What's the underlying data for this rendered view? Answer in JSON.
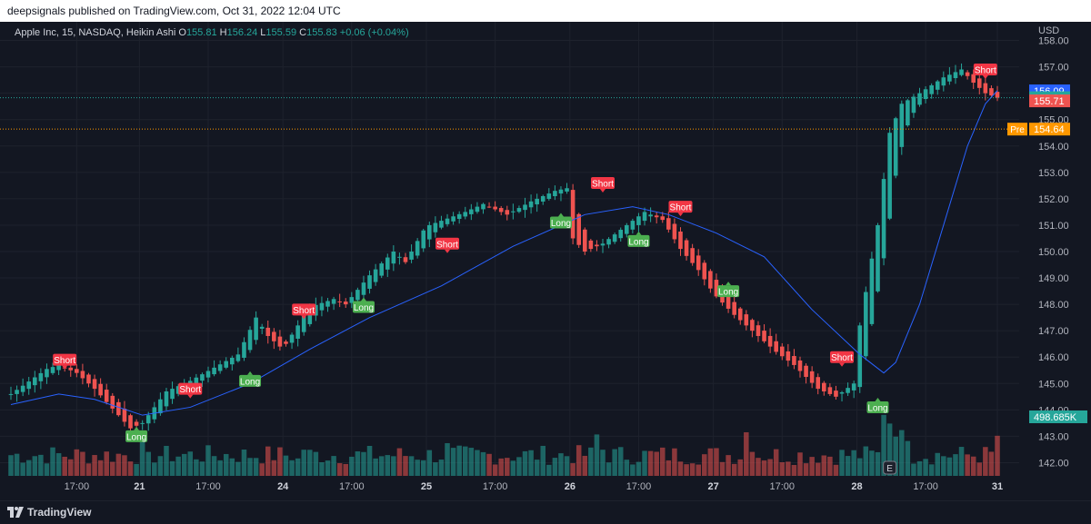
{
  "header": {
    "publisher_line": "deepsignals published on TradingView.com, Oct 31, 2022 12:04 UTC"
  },
  "legend": {
    "symbol": "Apple Inc, 15, NASDAQ, Heikin Ashi",
    "o_label": "O",
    "o_value": "155.81",
    "h_label": "H",
    "h_value": "156.24",
    "l_label": "L",
    "l_value": "155.59",
    "c_label": "C",
    "c_value": "155.83",
    "change": "+0.06 (+0.04%)"
  },
  "footer": {
    "brand": "TradingView"
  },
  "colors": {
    "up": "#26a69a",
    "down": "#ef5350",
    "ma": "#2962ff",
    "bg": "#131722",
    "grid": "#1e222d",
    "text": "#b2b5be",
    "pre": "#ff9800",
    "long": "#4caf50",
    "short": "#f23645"
  },
  "chart_data": {
    "type": "candlestick",
    "style": "Heikin Ashi",
    "timeframe": "15",
    "exchange": "NASDAQ",
    "currency_label": "USD",
    "ylim": [
      141.5,
      158.5
    ],
    "y_ticks": [
      142,
      143,
      144,
      145,
      146,
      147,
      148,
      149,
      150,
      151,
      152,
      153,
      154,
      155,
      156,
      157,
      158
    ],
    "x_ticks": [
      "17:00",
      "21",
      "17:00",
      "24",
      "17:00",
      "25",
      "17:00",
      "26",
      "17:00",
      "27",
      "17:00",
      "28",
      "17:00",
      "31"
    ],
    "bold_x_ticks": [
      "21",
      "24",
      "25",
      "26",
      "27",
      "28",
      "31"
    ],
    "bars_total": 166,
    "sessions": [
      {
        "bars": 22,
        "points": [
          [
            0,
            144.6
          ],
          [
            6,
            145.55
          ],
          [
            8,
            145.7
          ],
          [
            11,
            145.4
          ],
          [
            14,
            144.8
          ],
          [
            18,
            143.8
          ],
          [
            20,
            143.3
          ],
          [
            21,
            143.4
          ]
        ]
      },
      {
        "bars": 24,
        "points": [
          [
            0,
            143.5
          ],
          [
            4,
            144.7
          ],
          [
            8,
            145.1
          ],
          [
            12,
            145.6
          ],
          [
            16,
            146.1
          ],
          [
            19,
            147.5
          ],
          [
            21,
            146.8
          ],
          [
            23,
            146.4
          ]
        ]
      },
      {
        "bars": 24,
        "points": [
          [
            0,
            146.5
          ],
          [
            4,
            147.9
          ],
          [
            8,
            148.2
          ],
          [
            10,
            148.0
          ],
          [
            14,
            149.1
          ],
          [
            18,
            150.0
          ],
          [
            20,
            149.6
          ],
          [
            23,
            150.8
          ]
        ]
      },
      {
        "bars": 24,
        "points": [
          [
            0,
            151.0
          ],
          [
            6,
            151.5
          ],
          [
            9,
            151.8
          ],
          [
            13,
            151.4
          ],
          [
            17,
            151.9
          ],
          [
            21,
            152.3
          ],
          [
            23,
            152.4
          ]
        ]
      },
      {
        "bars": 24,
        "points": [
          [
            0,
            150.5
          ],
          [
            2,
            150.0
          ],
          [
            5,
            150.3
          ],
          [
            9,
            151.0
          ],
          [
            12,
            151.5
          ],
          [
            15,
            151.2
          ],
          [
            18,
            150.1
          ],
          [
            21,
            149.3
          ],
          [
            23,
            148.6
          ]
        ]
      },
      {
        "bars": 24,
        "points": [
          [
            0,
            148.3
          ],
          [
            3,
            147.6
          ],
          [
            7,
            146.8
          ],
          [
            10,
            146.2
          ],
          [
            13,
            145.7
          ],
          [
            17,
            144.8
          ],
          [
            20,
            144.5
          ],
          [
            23,
            145.0
          ]
        ]
      },
      {
        "bars": 24,
        "points": [
          [
            0,
            147.2
          ],
          [
            3,
            151.0
          ],
          [
            5,
            154.5
          ],
          [
            7,
            155.6
          ],
          [
            10,
            156.0
          ],
          [
            14,
            156.6
          ],
          [
            17,
            156.9
          ],
          [
            19,
            156.4
          ],
          [
            21,
            156.0
          ],
          [
            23,
            155.83
          ]
        ]
      }
    ],
    "ma": [
      [
        0,
        144.2
      ],
      [
        8,
        144.6
      ],
      [
        14,
        144.4
      ],
      [
        22,
        143.8
      ],
      [
        30,
        144.1
      ],
      [
        40,
        145.0
      ],
      [
        50,
        146.3
      ],
      [
        60,
        147.5
      ],
      [
        72,
        148.7
      ],
      [
        84,
        150.2
      ],
      [
        96,
        151.4
      ],
      [
        104,
        151.7
      ],
      [
        110,
        151.4
      ],
      [
        118,
        150.7
      ],
      [
        126,
        149.8
      ],
      [
        134,
        147.8
      ],
      [
        142,
        146.1
      ],
      [
        146,
        145.4
      ],
      [
        148,
        145.8
      ],
      [
        152,
        148.0
      ],
      [
        156,
        151.0
      ],
      [
        160,
        154.0
      ],
      [
        163,
        155.6
      ],
      [
        165,
        156.1
      ]
    ],
    "signals": [
      {
        "label": "Short",
        "bar": 9,
        "price": 145.9
      },
      {
        "label": "Long",
        "bar": 21,
        "price": 143.0
      },
      {
        "label": "Short",
        "bar": 30,
        "price": 144.8
      },
      {
        "label": "Long",
        "bar": 40,
        "price": 145.1
      },
      {
        "label": "Short",
        "bar": 49,
        "price": 147.8
      },
      {
        "label": "Long",
        "bar": 59,
        "price": 147.9
      },
      {
        "label": "Short",
        "bar": 73,
        "price": 150.3
      },
      {
        "label": "Long",
        "bar": 92,
        "price": 151.1
      },
      {
        "label": "Short",
        "bar": 99,
        "price": 152.6
      },
      {
        "label": "Long",
        "bar": 105,
        "price": 150.4
      },
      {
        "label": "Short",
        "bar": 112,
        "price": 151.7
      },
      {
        "label": "Long",
        "bar": 120,
        "price": 148.5
      },
      {
        "label": "Short",
        "bar": 139,
        "price": 146.0
      },
      {
        "label": "Long",
        "bar": 145,
        "price": 144.1
      },
      {
        "label": "Short",
        "bar": 163,
        "price": 156.9
      }
    ],
    "volume": {
      "max_label": "498.685K",
      "spikes": [
        [
          22,
          0.8
        ],
        [
          23,
          0.55
        ],
        [
          48,
          0.4
        ],
        [
          49,
          0.6
        ],
        [
          73,
          0.75
        ],
        [
          98,
          0.95
        ],
        [
          99,
          0.6
        ],
        [
          123,
          1.0
        ],
        [
          124,
          0.55
        ],
        [
          146,
          1.4
        ],
        [
          147,
          1.2
        ],
        [
          148,
          0.9
        ],
        [
          149,
          1.05
        ],
        [
          150,
          0.8
        ],
        [
          165,
          0.92
        ]
      ]
    },
    "price_labels": [
      {
        "text": "156.09",
        "value": 156.09,
        "bg": "#2962ff"
      },
      {
        "text": "155.83",
        "value": 155.83,
        "bg": "#26a69a"
      },
      {
        "text": "155.71",
        "value": 155.71,
        "bg": "#ef5350"
      },
      {
        "text": "154.64",
        "value": 154.64,
        "bg": "#ff9800",
        "tag": "Pre"
      }
    ],
    "earnings_marker": {
      "text": "E",
      "bar": 147
    }
  }
}
